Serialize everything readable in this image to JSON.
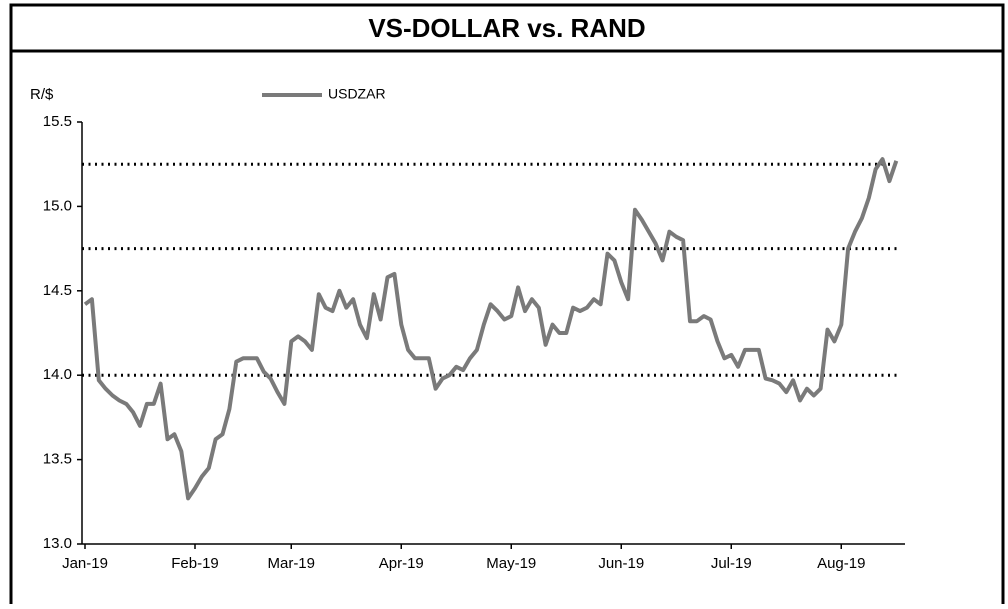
{
  "chart_data": {
    "type": "line",
    "title": "VS-DOLLAR vs. RAND",
    "y_label": "R/$",
    "categories": [
      "Jan-19",
      null,
      null,
      null,
      null,
      null,
      null,
      null,
      null,
      null,
      null,
      null,
      null,
      null,
      null,
      null,
      "Feb-19",
      null,
      null,
      null,
      null,
      null,
      null,
      null,
      null,
      null,
      null,
      null,
      null,
      null,
      "Mar-19",
      null,
      null,
      null,
      null,
      null,
      null,
      null,
      null,
      null,
      null,
      null,
      null,
      null,
      null,
      null,
      "Apr-19",
      null,
      null,
      null,
      null,
      null,
      null,
      null,
      null,
      null,
      null,
      null,
      null,
      null,
      null,
      null,
      "May-19",
      null,
      null,
      null,
      null,
      null,
      null,
      null,
      null,
      null,
      null,
      null,
      null,
      null,
      null,
      null,
      "Jun-19",
      null,
      null,
      null,
      null,
      null,
      null,
      null,
      null,
      null,
      null,
      null,
      null,
      null,
      null,
      null,
      "Jul-19",
      null,
      null,
      null,
      null,
      null,
      null,
      null,
      null,
      null,
      null,
      null,
      null,
      null,
      null,
      null,
      "Aug-19",
      null,
      null,
      null,
      null,
      null,
      null,
      null,
      null
    ],
    "series": [
      {
        "name": "USDZAR",
        "color": "#7a7a7a",
        "values": [
          14.42,
          14.45,
          13.97,
          13.92,
          13.88,
          13.85,
          13.83,
          13.78,
          13.7,
          13.83,
          13.83,
          13.95,
          13.62,
          13.65,
          13.55,
          13.27,
          13.33,
          13.4,
          13.45,
          13.62,
          13.65,
          13.8,
          14.08,
          14.1,
          14.1,
          14.1,
          14.02,
          13.98,
          13.9,
          13.83,
          14.2,
          14.23,
          14.2,
          14.15,
          14.48,
          14.4,
          14.38,
          14.5,
          14.4,
          14.45,
          14.3,
          14.22,
          14.48,
          14.33,
          14.58,
          14.6,
          14.3,
          14.15,
          14.1,
          14.1,
          14.1,
          13.92,
          13.98,
          14.0,
          14.05,
          14.03,
          14.1,
          14.15,
          14.3,
          14.42,
          14.38,
          14.33,
          14.35,
          14.52,
          14.38,
          14.45,
          14.4,
          14.18,
          14.3,
          14.25,
          14.25,
          14.4,
          14.38,
          14.4,
          14.45,
          14.42,
          14.72,
          14.68,
          14.55,
          14.45,
          14.98,
          14.92,
          14.85,
          14.78,
          14.68,
          14.85,
          14.82,
          14.8,
          14.32,
          14.32,
          14.35,
          14.33,
          14.2,
          14.1,
          14.12,
          14.05,
          14.15,
          14.15,
          14.15,
          13.98,
          13.97,
          13.95,
          13.9,
          13.97,
          13.85,
          13.92,
          13.88,
          13.92,
          14.27,
          14.2,
          14.3,
          14.75,
          14.85,
          14.93,
          15.05,
          15.22,
          15.28,
          15.15,
          15.27
        ]
      }
    ],
    "ylim": [
      13,
      15.5
    ],
    "yticks": [
      {
        "value": 13,
        "label": "13.0"
      },
      13.5,
      {
        "value": 14,
        "label": "14.0"
      },
      14.5,
      {
        "value": 15,
        "label": "15.0"
      },
      15.5
    ],
    "reference_lines": [
      15.25,
      14.75,
      14
    ],
    "legend": "top"
  }
}
